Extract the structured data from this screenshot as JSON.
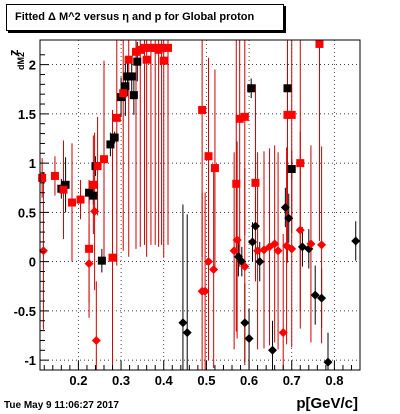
{
  "header": {
    "title": "Fitted Δ M^2 versus η and p for Global proton"
  },
  "footer": {
    "timestamp": "Tue May  9 11:06:27 2017"
  },
  "axis_text": {
    "xlabel": "p[GeV/c]",
    "ylabel_main": "z",
    "ylabel_sub": "dM2"
  },
  "colors": {
    "black_series": "#000000",
    "red_series": "#ff0000",
    "errbar_red": "#cc0000",
    "grid": "#000000"
  },
  "chart_data": {
    "type": "scatter",
    "title": "Fitted Δ M^2 versus η and p for Global proton",
    "xlabel": "p[GeV/c]",
    "ylabel": "z dM2",
    "xlim": [
      0.11,
      0.86
    ],
    "ylim": [
      -1.1,
      2.25
    ],
    "xticks": [
      0.2,
      0.3,
      0.4,
      0.5,
      0.6,
      0.7,
      0.8
    ],
    "yticks": [
      -1,
      -0.5,
      0,
      0.5,
      1,
      1.5,
      2
    ],
    "grid": true,
    "series": [
      {
        "marker": "square",
        "color": "#000000",
        "points": [
          {
            "x": 0.16,
            "y": 0.74,
            "err": 0.1
          },
          {
            "x": 0.17,
            "y": 0.78,
            "err": 0.28
          },
          {
            "x": 0.225,
            "y": 0.7,
            "err": 0.12
          },
          {
            "x": 0.235,
            "y": 0.67,
            "err": 0.09
          },
          {
            "x": 0.24,
            "y": 0.97,
            "err": 0.1
          },
          {
            "x": 0.255,
            "y": 0.01,
            "err": 0.12
          },
          {
            "x": 0.275,
            "y": 1.19,
            "err": 0.12
          },
          {
            "x": 0.285,
            "y": 1.26,
            "err": 0.06
          },
          {
            "x": 0.3,
            "y": 1.67,
            "err": 0.2
          },
          {
            "x": 0.31,
            "y": 1.78,
            "err": 0.3
          },
          {
            "x": 0.315,
            "y": 1.88,
            "err": 0.2
          },
          {
            "x": 0.325,
            "y": 1.88,
            "err": 0.2
          },
          {
            "x": 0.33,
            "y": 1.69,
            "err": 0.2
          },
          {
            "x": 0.338,
            "y": 2.03,
            "err": 0.2
          },
          {
            "x": 0.605,
            "y": 1.76,
            "err": 0.1
          },
          {
            "x": 0.69,
            "y": 1.76,
            "err": 0.25
          },
          {
            "x": 0.7,
            "y": 0.94,
            "err": 0.1
          }
        ]
      },
      {
        "marker": "diamond",
        "color": "#000000",
        "points": [
          {
            "x": 0.445,
            "y": -0.62,
            "err": 1.2
          },
          {
            "x": 0.455,
            "y": -0.72,
            "err": 1.2
          },
          {
            "x": 0.575,
            "y": 0.05,
            "err": 0.2
          },
          {
            "x": 0.583,
            "y": 0.0,
            "err": 0.15
          },
          {
            "x": 0.59,
            "y": -0.62,
            "err": 0.4
          },
          {
            "x": 0.6,
            "y": -0.78,
            "err": 0.3
          },
          {
            "x": 0.608,
            "y": 0.2,
            "err": 0.2
          },
          {
            "x": 0.615,
            "y": 0.36,
            "err": 0.3
          },
          {
            "x": 0.625,
            "y": 0.0,
            "err": 0.2
          },
          {
            "x": 0.655,
            "y": -0.9,
            "err": 0.3
          },
          {
            "x": 0.685,
            "y": 0.55,
            "err": 0.2
          },
          {
            "x": 0.693,
            "y": 0.44,
            "err": 0.25
          },
          {
            "x": 0.725,
            "y": 0.15,
            "err": 0.2
          },
          {
            "x": 0.74,
            "y": 0.13,
            "err": 0.2
          },
          {
            "x": 0.755,
            "y": -0.34,
            "err": 0.3
          },
          {
            "x": 0.77,
            "y": -0.37,
            "err": 0.3
          },
          {
            "x": 0.785,
            "y": -1.02,
            "err": 0.3
          },
          {
            "x": 0.85,
            "y": 0.21,
            "err": 0.2
          }
        ]
      },
      {
        "marker": "square",
        "color": "#ff0000",
        "points": [
          {
            "x": 0.115,
            "y": 0.85,
            "err": 0.2
          },
          {
            "x": 0.145,
            "y": 0.87,
            "err": 0.2
          },
          {
            "x": 0.165,
            "y": 0.73,
            "err": 0.5
          },
          {
            "x": 0.185,
            "y": 0.6,
            "err": 0.6
          },
          {
            "x": 0.205,
            "y": 0.63,
            "err": 0.2
          },
          {
            "x": 0.225,
            "y": 0.13,
            "err": 0.7
          },
          {
            "x": 0.235,
            "y": 0.78,
            "err": 0.5
          },
          {
            "x": 0.245,
            "y": 0.97,
            "err": 0.5
          },
          {
            "x": 0.26,
            "y": 1.04,
            "err": 1.0
          },
          {
            "x": 0.28,
            "y": 0.04,
            "err": 1.5
          },
          {
            "x": 0.29,
            "y": 1.46,
            "err": 1.5
          },
          {
            "x": 0.305,
            "y": 1.71,
            "err": 1.6
          },
          {
            "x": 0.318,
            "y": 2.05,
            "err": 2.0
          },
          {
            "x": 0.335,
            "y": 2.13,
            "err": 2.0
          },
          {
            "x": 0.345,
            "y": 2.15,
            "err": 2.0
          },
          {
            "x": 0.355,
            "y": 2.17,
            "err": 2.0
          },
          {
            "x": 0.36,
            "y": 2.05,
            "err": 2.0
          },
          {
            "x": 0.37,
            "y": 2.17,
            "err": 2.0
          },
          {
            "x": 0.38,
            "y": 2.17,
            "err": 2.0
          },
          {
            "x": 0.388,
            "y": 2.15,
            "err": 2.0
          },
          {
            "x": 0.395,
            "y": 2.17,
            "err": 2.0
          },
          {
            "x": 0.4,
            "y": 2.04,
            "err": 2.0
          },
          {
            "x": 0.41,
            "y": 2.17,
            "err": 2.0
          },
          {
            "x": 0.49,
            "y": 1.54,
            "err": 1.5
          },
          {
            "x": 0.505,
            "y": 1.07,
            "err": 1.0
          },
          {
            "x": 0.52,
            "y": 0.95,
            "err": 1.0
          },
          {
            "x": 0.57,
            "y": 0.79,
            "err": 1.5
          },
          {
            "x": 0.578,
            "y": 1.45,
            "err": 1.5
          },
          {
            "x": 0.59,
            "y": 1.47,
            "err": 1.2
          },
          {
            "x": 0.615,
            "y": 0.8,
            "err": 1.0
          },
          {
            "x": 0.69,
            "y": 1.49,
            "err": 1.5
          },
          {
            "x": 0.7,
            "y": 1.49,
            "err": 1.2
          },
          {
            "x": 0.72,
            "y": 1.0,
            "err": 1.5
          },
          {
            "x": 0.765,
            "y": 2.21,
            "err": 2.0
          }
        ]
      },
      {
        "marker": "diamond",
        "color": "#ff0000",
        "points": [
          {
            "x": 0.118,
            "y": 0.11,
            "err": 0.8
          },
          {
            "x": 0.225,
            "y": -0.02,
            "err": 0.4
          },
          {
            "x": 0.238,
            "y": 0.51,
            "err": 0.8
          },
          {
            "x": 0.242,
            "y": -0.8,
            "err": 0.6
          },
          {
            "x": 0.49,
            "y": -0.3,
            "err": 1.0
          },
          {
            "x": 0.497,
            "y": -0.3,
            "err": 1.0
          },
          {
            "x": 0.505,
            "y": 0.0,
            "err": 1.0
          },
          {
            "x": 0.517,
            "y": -0.08,
            "err": 1.0
          },
          {
            "x": 0.565,
            "y": 0.11,
            "err": 1.0
          },
          {
            "x": 0.572,
            "y": 0.22,
            "err": 1.0
          },
          {
            "x": 0.59,
            "y": -0.05,
            "err": 1.0
          },
          {
            "x": 0.62,
            "y": 0.11,
            "err": 1.0
          },
          {
            "x": 0.635,
            "y": 0.12,
            "err": 1.0
          },
          {
            "x": 0.648,
            "y": 0.15,
            "err": 1.0
          },
          {
            "x": 0.66,
            "y": 0.18,
            "err": 1.0
          },
          {
            "x": 0.668,
            "y": 0.11,
            "err": 1.0
          },
          {
            "x": 0.68,
            "y": -0.72,
            "err": 1.0
          },
          {
            "x": 0.688,
            "y": 0.16,
            "err": 1.0
          },
          {
            "x": 0.7,
            "y": 0.13,
            "err": 1.0
          },
          {
            "x": 0.72,
            "y": 0.32,
            "err": 1.0
          },
          {
            "x": 0.745,
            "y": 0.18,
            "err": 1.0
          },
          {
            "x": 0.77,
            "y": 0.17,
            "err": 1.0
          }
        ]
      }
    ]
  }
}
